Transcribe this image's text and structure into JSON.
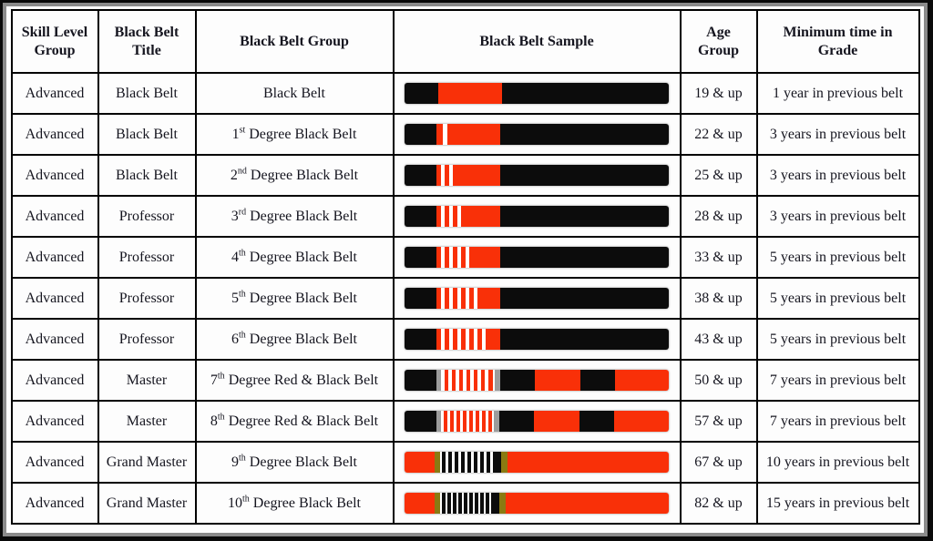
{
  "palette": {
    "black": "#0c0c0c",
    "red": "#F93008",
    "white": "#ffffff",
    "gray": "#9c9c9c",
    "gold": "#8a7a12"
  },
  "table": {
    "headers": [
      "Skill Level Group",
      "Black Belt Title",
      "Black Belt Group",
      "Black Belt Sample",
      "Age Group",
      "Minimum time in Grade"
    ]
  },
  "rows": [
    {
      "skill": "Advanced",
      "title": "Black Belt",
      "group": {
        "num": "",
        "ord": "",
        "rest": "Black Belt"
      },
      "belt": [
        [
          "black",
          37
        ],
        [
          "red",
          70
        ],
        [
          "black",
          183
        ]
      ],
      "age": "19 & up",
      "min_time": "1 year in previous belt"
    },
    {
      "skill": "Advanced",
      "title": "Black Belt",
      "group": {
        "num": "1",
        "ord": "st",
        "rest": " Degree Black Belt"
      },
      "belt": [
        [
          "black",
          35
        ],
        [
          "red",
          7
        ],
        [
          "white",
          5
        ],
        [
          "red",
          58
        ],
        [
          "black",
          185
        ]
      ],
      "age": "22 & up",
      "min_time": "3 years in previous belt"
    },
    {
      "skill": "Advanced",
      "title": "Black Belt",
      "group": {
        "num": "2",
        "ord": "nd",
        "rest": " Degree Black Belt"
      },
      "belt": [
        [
          "black",
          35
        ],
        [
          "red",
          5
        ],
        [
          "white",
          4
        ],
        [
          "red",
          5
        ],
        [
          "white",
          4
        ],
        [
          "red",
          52
        ],
        [
          "black",
          185
        ]
      ],
      "age": "25 & up",
      "min_time": "3 years in previous belt"
    },
    {
      "skill": "Advanced",
      "title": "Professor",
      "group": {
        "num": "3",
        "ord": "rd",
        "rest": " Degree Black Belt"
      },
      "belt": [
        [
          "black",
          35
        ],
        [
          "red",
          5
        ],
        [
          "white",
          4
        ],
        [
          "red",
          5
        ],
        [
          "white",
          4
        ],
        [
          "red",
          5
        ],
        [
          "white",
          4
        ],
        [
          "red",
          43
        ],
        [
          "black",
          185
        ]
      ],
      "age": "28 & up",
      "min_time": "3 years in previous belt"
    },
    {
      "skill": "Advanced",
      "title": "Professor",
      "group": {
        "num": "4",
        "ord": "th",
        "rest": " Degree Black Belt"
      },
      "belt": [
        [
          "black",
          35
        ],
        [
          "red",
          5
        ],
        [
          "white",
          4
        ],
        [
          "red",
          5
        ],
        [
          "white",
          4
        ],
        [
          "red",
          5
        ],
        [
          "white",
          4
        ],
        [
          "red",
          5
        ],
        [
          "white",
          4
        ],
        [
          "red",
          34
        ],
        [
          "black",
          185
        ]
      ],
      "age": "33 & up",
      "min_time": "5 years in previous belt"
    },
    {
      "skill": "Advanced",
      "title": "Professor",
      "group": {
        "num": "5",
        "ord": "th",
        "rest": " Degree Black Belt"
      },
      "belt": [
        [
          "black",
          35
        ],
        [
          "red",
          5
        ],
        [
          "white",
          4
        ],
        [
          "red",
          5
        ],
        [
          "white",
          4
        ],
        [
          "red",
          5
        ],
        [
          "white",
          4
        ],
        [
          "red",
          5
        ],
        [
          "white",
          4
        ],
        [
          "red",
          5
        ],
        [
          "white",
          4
        ],
        [
          "red",
          25
        ],
        [
          "black",
          185
        ]
      ],
      "age": "38 & up",
      "min_time": "5 years in previous belt"
    },
    {
      "skill": "Advanced",
      "title": "Professor",
      "group": {
        "num": "6",
        "ord": "th",
        "rest": " Degree Black Belt"
      },
      "belt": [
        [
          "black",
          35
        ],
        [
          "red",
          5
        ],
        [
          "white",
          4
        ],
        [
          "red",
          5
        ],
        [
          "white",
          4
        ],
        [
          "red",
          5
        ],
        [
          "white",
          4
        ],
        [
          "red",
          5
        ],
        [
          "white",
          4
        ],
        [
          "red",
          5
        ],
        [
          "white",
          4
        ],
        [
          "red",
          5
        ],
        [
          "white",
          4
        ],
        [
          "red",
          16
        ],
        [
          "black",
          185
        ]
      ],
      "age": "43 & up",
      "min_time": "5 years in previous belt"
    },
    {
      "skill": "Advanced",
      "title": "Master",
      "group": {
        "num": "7",
        "ord": "th",
        "rest": " Degree Red & Black Belt"
      },
      "belt": [
        [
          "black",
          35
        ],
        [
          "gray",
          5
        ],
        [
          "white",
          4
        ],
        [
          "red",
          4
        ],
        [
          "white",
          4
        ],
        [
          "red",
          4
        ],
        [
          "white",
          4
        ],
        [
          "red",
          4
        ],
        [
          "white",
          4
        ],
        [
          "red",
          4
        ],
        [
          "white",
          4
        ],
        [
          "red",
          4
        ],
        [
          "white",
          4
        ],
        [
          "red",
          4
        ],
        [
          "white",
          4
        ],
        [
          "red",
          5
        ],
        [
          "white",
          2
        ],
        [
          "gray",
          6
        ],
        [
          "black",
          38
        ],
        [
          "red",
          50
        ],
        [
          "black",
          38
        ],
        [
          "red",
          59
        ]
      ],
      "age": "50 & up",
      "min_time": "7 years in previous belt"
    },
    {
      "skill": "Advanced",
      "title": "Master",
      "group": {
        "num": "8",
        "ord": "th",
        "rest": " Degree Red & Black Belt"
      },
      "belt": [
        [
          "black",
          35
        ],
        [
          "gray",
          5
        ],
        [
          "white",
          3
        ],
        [
          "red",
          4
        ],
        [
          "white",
          3
        ],
        [
          "red",
          4
        ],
        [
          "white",
          3
        ],
        [
          "red",
          4
        ],
        [
          "white",
          3
        ],
        [
          "red",
          4
        ],
        [
          "white",
          3
        ],
        [
          "red",
          4
        ],
        [
          "white",
          3
        ],
        [
          "red",
          4
        ],
        [
          "white",
          3
        ],
        [
          "red",
          4
        ],
        [
          "white",
          3
        ],
        [
          "red",
          4
        ],
        [
          "white",
          2
        ],
        [
          "gray",
          6
        ],
        [
          "black",
          38
        ],
        [
          "red",
          50
        ],
        [
          "black",
          38
        ],
        [
          "red",
          60
        ]
      ],
      "age": "57 & up",
      "min_time": "7 years in previous belt"
    },
    {
      "skill": "Advanced",
      "title": "Grand Master",
      "group": {
        "num": "9",
        "ord": "th",
        "rest": " Degree Black Belt"
      },
      "belt": [
        [
          "red",
          33
        ],
        [
          "gold",
          6
        ],
        [
          "white",
          2
        ],
        [
          "black",
          4
        ],
        [
          "white",
          3
        ],
        [
          "black",
          4
        ],
        [
          "white",
          3
        ],
        [
          "black",
          4
        ],
        [
          "white",
          3
        ],
        [
          "black",
          4
        ],
        [
          "white",
          3
        ],
        [
          "black",
          4
        ],
        [
          "white",
          3
        ],
        [
          "black",
          4
        ],
        [
          "white",
          3
        ],
        [
          "black",
          4
        ],
        [
          "white",
          3
        ],
        [
          "black",
          4
        ],
        [
          "white",
          3
        ],
        [
          "black",
          9
        ],
        [
          "gold",
          7
        ],
        [
          "red",
          177
        ]
      ],
      "age": "67 & up",
      "min_time": "10 years in previous belt"
    },
    {
      "skill": "Advanced",
      "title": "Grand Master",
      "group": {
        "num": "10",
        "ord": "th",
        "rest": " Degree Black Belt"
      },
      "belt": [
        [
          "red",
          33
        ],
        [
          "gold",
          6
        ],
        [
          "white",
          2
        ],
        [
          "black",
          4
        ],
        [
          "white",
          2
        ],
        [
          "black",
          4
        ],
        [
          "white",
          2
        ],
        [
          "black",
          4
        ],
        [
          "white",
          2
        ],
        [
          "black",
          4
        ],
        [
          "white",
          2
        ],
        [
          "black",
          4
        ],
        [
          "white",
          2
        ],
        [
          "black",
          4
        ],
        [
          "white",
          2
        ],
        [
          "black",
          4
        ],
        [
          "white",
          2
        ],
        [
          "black",
          4
        ],
        [
          "white",
          2
        ],
        [
          "black",
          4
        ],
        [
          "white",
          2
        ],
        [
          "black",
          9
        ],
        [
          "gold",
          7
        ],
        [
          "red",
          179
        ]
      ],
      "age": "82 & up",
      "min_time": "15 years in previous belt"
    }
  ]
}
